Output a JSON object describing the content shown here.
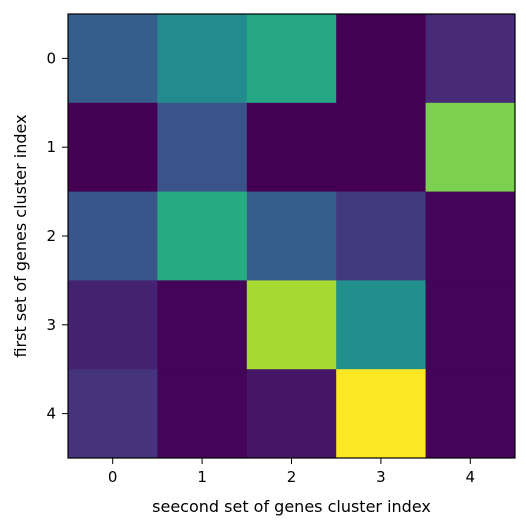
{
  "chart_data": {
    "type": "heatmap",
    "title": "",
    "xlabel": "seecond set of genes cluster index",
    "ylabel": "first set of genes cluster index",
    "x_categories": [
      "0",
      "1",
      "2",
      "3",
      "4"
    ],
    "y_categories": [
      "0",
      "1",
      "2",
      "3",
      "4"
    ],
    "colormap": "viridis",
    "grid": false,
    "colorbar": false,
    "value_range": [
      0,
      1
    ],
    "values": [
      [
        0.3,
        0.48,
        0.6,
        0.0,
        0.12
      ],
      [
        0.0,
        0.26,
        0.0,
        0.0,
        0.8
      ],
      [
        0.27,
        0.62,
        0.3,
        0.17,
        0.01
      ],
      [
        0.1,
        0.01,
        0.87,
        0.5,
        0.01
      ],
      [
        0.15,
        0.01,
        0.06,
        1.0,
        0.01
      ]
    ]
  }
}
